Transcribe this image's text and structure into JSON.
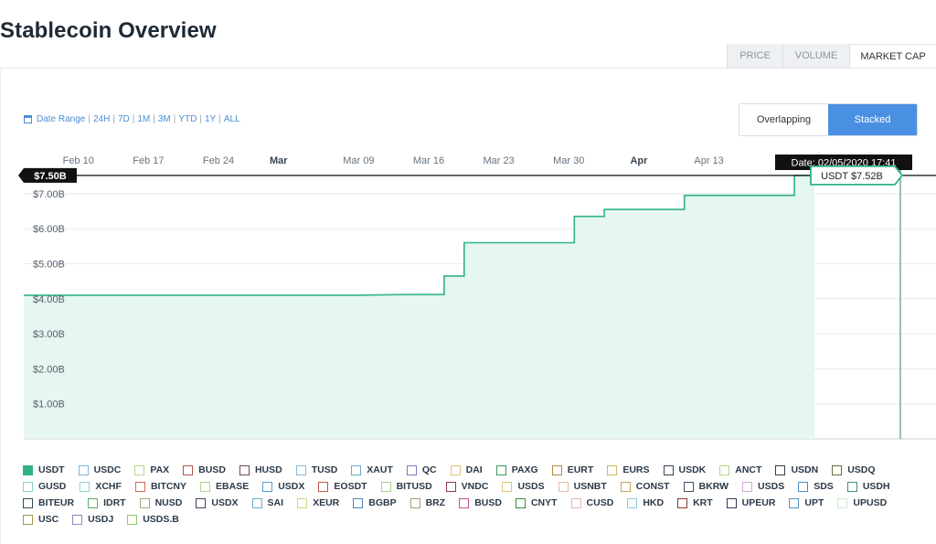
{
  "page_title": "Stablecoin Overview",
  "metric_tabs": [
    "PRICE",
    "VOLUME",
    "MARKET CAP"
  ],
  "active_metric": "MARKET CAP",
  "date_range": {
    "label": "Date Range",
    "ranges": [
      "24H",
      "7D",
      "1M",
      "3M",
      "YTD",
      "1Y",
      "ALL"
    ]
  },
  "mode_toggle": {
    "options": [
      "Overlapping",
      "Stacked"
    ],
    "active": "Stacked"
  },
  "crosshair": {
    "price_label": "$7.50B",
    "date_label": "Date: 02/05/2020 17:41",
    "tooltip": "USDT $7.52B"
  },
  "colors": {
    "usdt": "#2fb383",
    "usdt_fill": "#e6f6f0"
  },
  "chart_data": {
    "type": "area",
    "x_ticks": [
      "Feb 10",
      "Feb 17",
      "Feb 24",
      "Mar",
      "Mar 09",
      "Mar 16",
      "Mar 23",
      "Mar 30",
      "Apr",
      "Apr 13"
    ],
    "x_ticks_bold": [
      "Mar",
      "Apr"
    ],
    "y_ticks": [
      "$1.00B",
      "$2.00B",
      "$3.00B",
      "$4.00B",
      "$5.00B",
      "$6.00B",
      "$7.00B"
    ],
    "ylim": [
      0,
      7.7
    ],
    "grid": true,
    "series": [
      {
        "name": "USDT",
        "points": [
          [
            "2020-02-05",
            4.1
          ],
          [
            "2020-02-17",
            4.1
          ],
          [
            "2020-03-01",
            4.1
          ],
          [
            "2020-03-09",
            4.1
          ],
          [
            "2020-03-14",
            4.12
          ],
          [
            "2020-03-18",
            4.12
          ],
          [
            "2020-03-18",
            4.65
          ],
          [
            "2020-03-20",
            4.65
          ],
          [
            "2020-03-20",
            5.6
          ],
          [
            "2020-03-31",
            5.6
          ],
          [
            "2020-03-31",
            6.35
          ],
          [
            "2020-04-03",
            6.35
          ],
          [
            "2020-04-03",
            6.55
          ],
          [
            "2020-04-11",
            6.55
          ],
          [
            "2020-04-11",
            6.95
          ],
          [
            "2020-04-22",
            6.95
          ],
          [
            "2020-04-22",
            7.52
          ],
          [
            "2020-04-24",
            7.52
          ]
        ]
      }
    ]
  },
  "legend": [
    {
      "name": "USDT",
      "color": "#2fb383",
      "filled": true
    },
    {
      "name": "USDC",
      "color": "#7fb8e0"
    },
    {
      "name": "PAX",
      "color": "#b7d98a"
    },
    {
      "name": "BUSD",
      "color": "#b4564a"
    },
    {
      "name": "HUSD",
      "color": "#6b4a55"
    },
    {
      "name": "TUSD",
      "color": "#88b8da"
    },
    {
      "name": "XAUT",
      "color": "#6ab0cf"
    },
    {
      "name": "QC",
      "color": "#6f7fbd"
    },
    {
      "name": "DAI",
      "color": "#e3c27a"
    },
    {
      "name": "PAXG",
      "color": "#3f9a5a"
    },
    {
      "name": "EURT",
      "color": "#b98a3c"
    },
    {
      "name": "EURS",
      "color": "#d4b66c"
    },
    {
      "name": "USDK",
      "color": "#3e3e5a"
    },
    {
      "name": "ANCT",
      "color": "#b5d785"
    },
    {
      "name": "USDN",
      "color": "#2c3e55"
    },
    {
      "name": "USDQ",
      "color": "#6b6a3a"
    },
    {
      "name": "GUSD",
      "color": "#8fd0cf"
    },
    {
      "name": "XCHF",
      "color": "#8fd4d0"
    },
    {
      "name": "BITCNY",
      "color": "#d26a5e"
    },
    {
      "name": "EBASE",
      "color": "#a9d48c"
    },
    {
      "name": "USDX",
      "color": "#5c9ad1"
    },
    {
      "name": "EOSDT",
      "color": "#c2544c"
    },
    {
      "name": "BITUSD",
      "color": "#9fd689"
    },
    {
      "name": "VNDC",
      "color": "#8c3a4c"
    },
    {
      "name": "USDS",
      "color": "#e3c56f"
    },
    {
      "name": "USNBT",
      "color": "#e8bba0"
    },
    {
      "name": "CONST",
      "color": "#c7a15a"
    },
    {
      "name": "BKRW",
      "color": "#48506b"
    },
    {
      "name": "USDS",
      "color": "#d6a6d9"
    },
    {
      "name": "SDS",
      "color": "#4f8dc5"
    },
    {
      "name": "USDH",
      "color": "#3f8f7a"
    },
    {
      "name": "BITEUR",
      "color": "#2f4e63"
    },
    {
      "name": "IDRT",
      "color": "#5fa86a"
    },
    {
      "name": "NUSD",
      "color": "#a3a676"
    },
    {
      "name": "USDX",
      "color": "#3c4561"
    },
    {
      "name": "SAI",
      "color": "#6aaed1"
    },
    {
      "name": "XEUR",
      "color": "#c7d77e"
    },
    {
      "name": "BGBP",
      "color": "#4f85b3"
    },
    {
      "name": "BRZ",
      "color": "#a1a178"
    },
    {
      "name": "BUSD",
      "color": "#c04f9c"
    },
    {
      "name": "CNYT",
      "color": "#3d8c3a"
    },
    {
      "name": "CUSD",
      "color": "#e7b6b6"
    },
    {
      "name": "HKD",
      "color": "#8fc6dc"
    },
    {
      "name": "KRT",
      "color": "#8a3a2c"
    },
    {
      "name": "UPEUR",
      "color": "#2c3a61"
    },
    {
      "name": "UPT",
      "color": "#5796c4"
    },
    {
      "name": "UPUSD",
      "color": "#cfe7cc"
    },
    {
      "name": "USC",
      "color": "#a89652"
    },
    {
      "name": "USDJ",
      "color": "#9a82c2"
    },
    {
      "name": "USDS.B",
      "color": "#8bcf6a"
    }
  ]
}
